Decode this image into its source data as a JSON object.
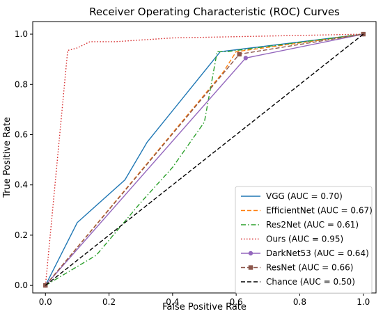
{
  "chart_data": {
    "type": "line",
    "title": "Receiver Operating Characteristic (ROC) Curves",
    "xlabel": "False Positive Rate",
    "ylabel": "True Positive Rate",
    "xlim": [
      -0.04,
      1.04
    ],
    "ylim": [
      -0.03,
      1.05
    ],
    "xticks": [
      "0.0",
      "0.2",
      "0.4",
      "0.6",
      "0.8",
      "1.0"
    ],
    "yticks": [
      "0.0",
      "0.2",
      "0.4",
      "0.6",
      "0.8",
      "1.0"
    ],
    "grid": false,
    "legend_position": "lower-right",
    "series": [
      {
        "name": "VGG (AUC = 0.70)",
        "color": "#1f77b4",
        "style": "solid",
        "marker": "",
        "x": [
          0,
          0.1,
          0.25,
          0.32,
          0.55,
          1.0
        ],
        "y": [
          0,
          0.25,
          0.42,
          0.57,
          0.93,
          1.0
        ]
      },
      {
        "name": "EfficientNet (AUC = 0.67)",
        "color": "#ff7f0e",
        "style": "dashed",
        "marker": "",
        "x": [
          0,
          0.56,
          0.6,
          1.0
        ],
        "y": [
          0,
          0.85,
          0.93,
          1.0
        ]
      },
      {
        "name": "Res2Net (AUC = 0.61)",
        "color": "#2ca02c",
        "style": "dashdot",
        "marker": "",
        "x": [
          0,
          0.16,
          0.3,
          0.4,
          0.5,
          0.54,
          0.57,
          1.0
        ],
        "y": [
          0,
          0.12,
          0.33,
          0.47,
          0.65,
          0.93,
          0.93,
          1.0
        ]
      },
      {
        "name": "Ours (AUC = 0.95)",
        "color": "#d62728",
        "style": "dotted",
        "marker": "",
        "x": [
          0,
          0.07,
          0.1,
          0.14,
          0.22,
          0.4,
          1.0
        ],
        "y": [
          0,
          0.935,
          0.945,
          0.97,
          0.97,
          0.985,
          1.0
        ]
      },
      {
        "name": "DarkNet53 (AUC = 0.64)",
        "color": "#9467bd",
        "style": "solid",
        "marker": "circle",
        "x": [
          0,
          0.63,
          1.0
        ],
        "y": [
          0,
          0.905,
          1.0
        ]
      },
      {
        "name": "ResNet (AUC = 0.66)",
        "color": "#8c564b",
        "style": "dashed",
        "marker": "square",
        "x": [
          0,
          0.61,
          1.0
        ],
        "y": [
          0,
          0.92,
          1.0
        ]
      },
      {
        "name": "Chance (AUC = 0.50)",
        "color": "#000000",
        "style": "dashed",
        "marker": "",
        "x": [
          0,
          1.0
        ],
        "y": [
          0,
          1.0
        ]
      }
    ]
  }
}
